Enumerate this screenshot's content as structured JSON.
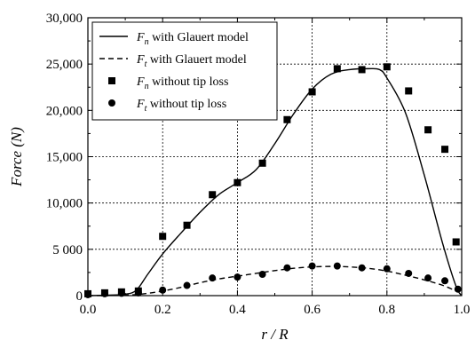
{
  "chart_data": {
    "type": "line",
    "xlabel": "r / R",
    "ylabel": "Force (N)",
    "xlim": [
      0.0,
      1.0
    ],
    "ylim": [
      0,
      30000
    ],
    "x_ticks": [
      0.0,
      0.2,
      0.4,
      0.6,
      0.8,
      1.0
    ],
    "x_tick_labels": [
      "0.0",
      "0.2",
      "0.4",
      "0.6",
      "0.8",
      "1.0"
    ],
    "y_ticks": [
      0,
      5000,
      10000,
      15000,
      20000,
      25000,
      30000
    ],
    "y_tick_labels": [
      "0",
      "5 000",
      "10,000",
      "15,000",
      "20,000",
      "25,000",
      "30,000"
    ],
    "grid": true,
    "legend_position": "top-left",
    "series": [
      {
        "symbol": "F",
        "subscript": "n",
        "label_rest": " with Glauert model",
        "style": "solid-line",
        "x": [
          0.0,
          0.05,
          0.1,
          0.13,
          0.16,
          0.2,
          0.25,
          0.3,
          0.35,
          0.4,
          0.45,
          0.5,
          0.55,
          0.6,
          0.65,
          0.7,
          0.75,
          0.78,
          0.8,
          0.85,
          0.9,
          0.95,
          0.985,
          1.0
        ],
        "values": [
          0,
          50,
          150,
          600,
          2300,
          4500,
          6800,
          9000,
          10900,
          12200,
          13600,
          16400,
          19600,
          22300,
          23900,
          24400,
          24500,
          24400,
          23500,
          19700,
          13000,
          5500,
          1000,
          0
        ]
      },
      {
        "symbol": "F",
        "subscript": "t",
        "label_rest": " with Glauert model",
        "style": "dashed-line",
        "x": [
          0.0,
          0.1,
          0.15,
          0.2,
          0.25,
          0.3,
          0.35,
          0.4,
          0.45,
          0.5,
          0.55,
          0.6,
          0.65,
          0.7,
          0.75,
          0.8,
          0.85,
          0.9,
          0.95,
          0.985
        ],
        "values": [
          0,
          50,
          200,
          500,
          900,
          1400,
          1800,
          2100,
          2400,
          2700,
          2950,
          3100,
          3150,
          3100,
          2950,
          2650,
          2200,
          1700,
          1100,
          500
        ]
      },
      {
        "symbol": "F",
        "subscript": "n",
        "label_rest": " without tip loss",
        "style": "square-markers",
        "x": [
          0.0,
          0.045,
          0.09,
          0.135,
          0.2,
          0.265,
          0.333,
          0.4,
          0.467,
          0.533,
          0.6,
          0.667,
          0.733,
          0.8,
          0.858,
          0.91,
          0.955,
          0.985
        ],
        "values": [
          200,
          300,
          400,
          500,
          6400,
          7600,
          10900,
          12200,
          14300,
          19000,
          22000,
          24500,
          24400,
          24700,
          22100,
          17900,
          15800,
          5800
        ]
      },
      {
        "symbol": "F",
        "subscript": "t",
        "label_rest": " without tip loss",
        "style": "circle-markers",
        "x": [
          0.0,
          0.045,
          0.09,
          0.135,
          0.2,
          0.265,
          0.333,
          0.4,
          0.467,
          0.533,
          0.6,
          0.667,
          0.733,
          0.8,
          0.858,
          0.91,
          0.955,
          0.99
        ],
        "values": [
          100,
          200,
          250,
          300,
          600,
          1100,
          1900,
          2000,
          2300,
          3000,
          3200,
          3200,
          3000,
          2900,
          2400,
          1900,
          1600,
          700
        ]
      }
    ]
  }
}
